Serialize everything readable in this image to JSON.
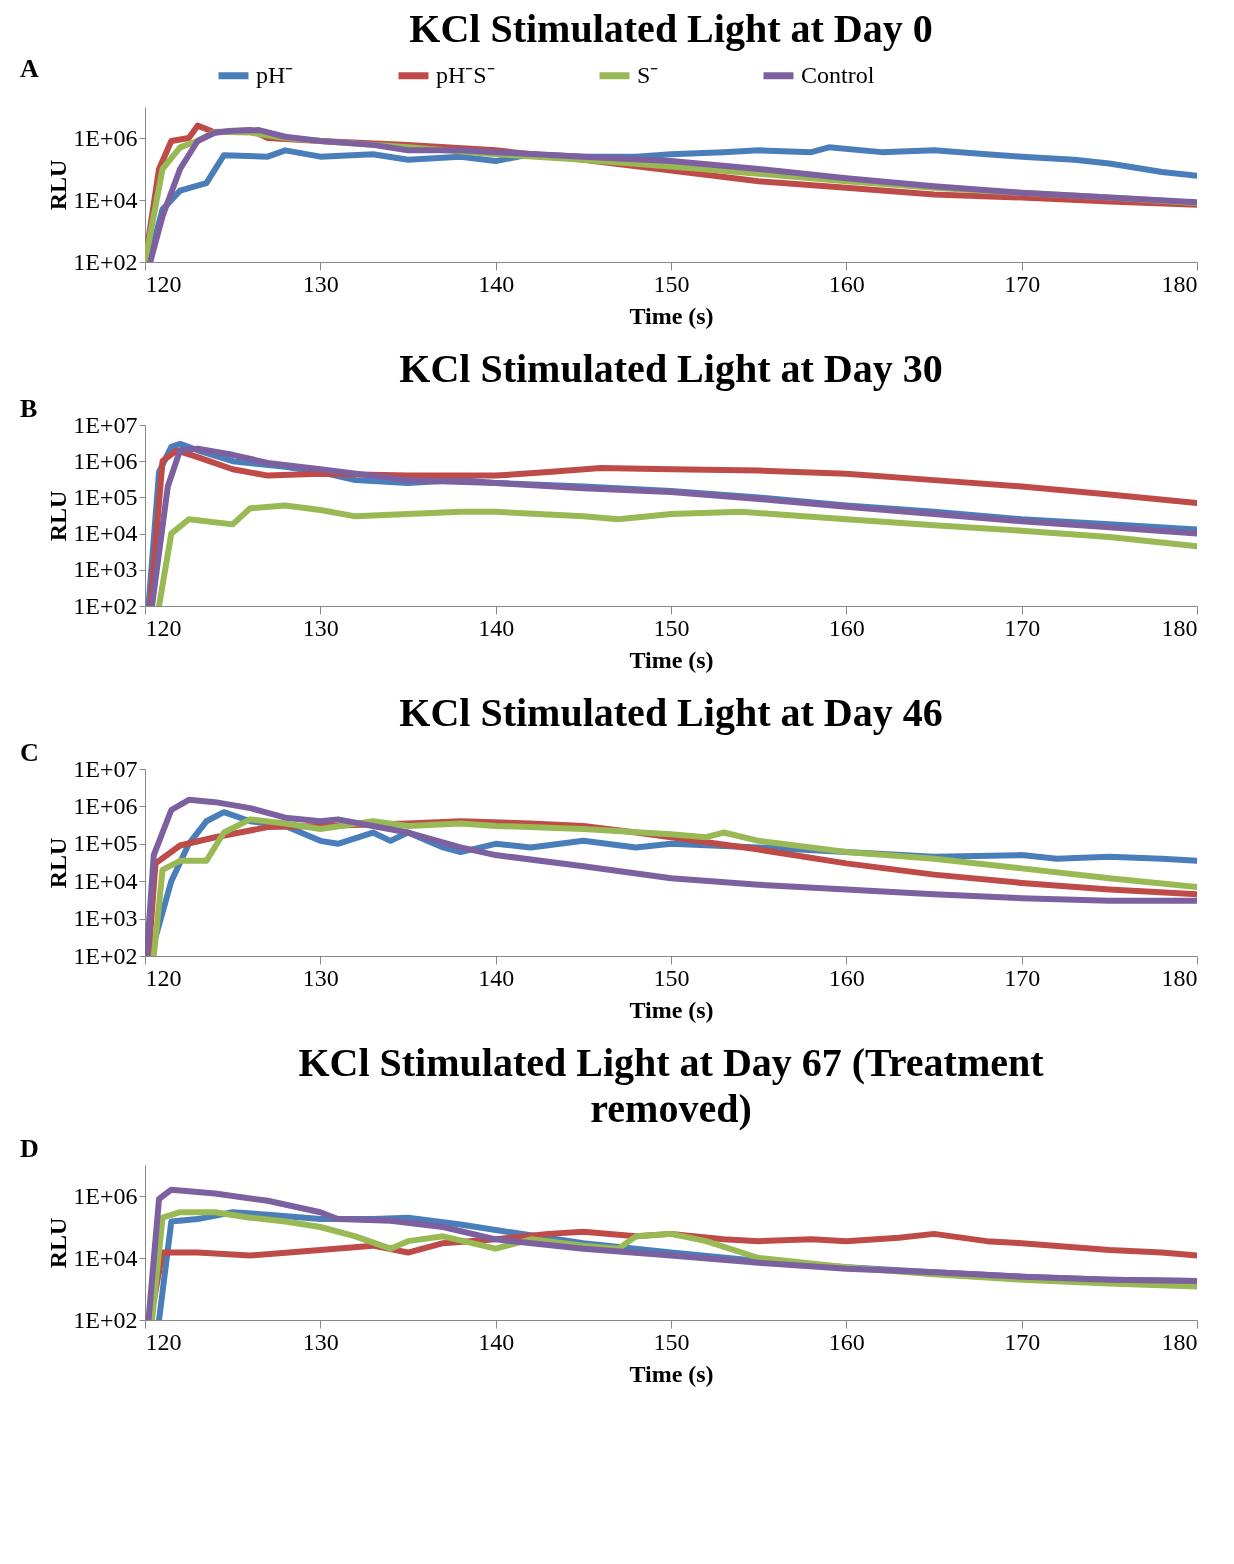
{
  "chart_data": [
    {
      "type": "line",
      "title": "KCl Stimulated Light at Day 0",
      "xlabel": "Time (s)",
      "ylabel": "RLU",
      "annotations": [
        "A"
      ],
      "log": true,
      "legend": "top",
      "line_style": "solid",
      "xlim": [
        120,
        180
      ],
      "xticks": [
        120,
        130,
        140,
        150,
        160,
        170,
        180
      ],
      "ylim": [
        100,
        10000000
      ],
      "yticks": [
        {
          "value": 100,
          "label": "1E+02"
        },
        {
          "value": 10000,
          "label": "1E+04"
        },
        {
          "value": 1000000,
          "label": "1E+06"
        }
      ],
      "series": [
        {
          "name": "pH⁻",
          "color": "#4a7ebb",
          "x": [
            120.2,
            121,
            122,
            123.5,
            124.5,
            127,
            128,
            130,
            133,
            135,
            138,
            140,
            142,
            145,
            148,
            150,
            153,
            155,
            158,
            159,
            162,
            165,
            168,
            170,
            173,
            175,
            178,
            180
          ],
          "values": [
            100,
            5000,
            20000,
            35000,
            280000,
            250000,
            400000,
            250000,
            300000,
            200000,
            250000,
            180000,
            300000,
            250000,
            250000,
            300000,
            350000,
            400000,
            350000,
            500000,
            350000,
            400000,
            300000,
            250000,
            200000,
            150000,
            80000,
            60000
          ]
        },
        {
          "name": "pH⁻S⁻",
          "color": "#be4b48",
          "x": [
            120,
            120.8,
            121.5,
            122.5,
            123,
            124,
            126,
            127,
            130,
            135,
            140,
            145,
            150,
            155,
            160,
            165,
            170,
            175,
            180
          ],
          "values": [
            100,
            100000,
            800000,
            1000000,
            2500000,
            1500000,
            1800000,
            1000000,
            800000,
            600000,
            400000,
            200000,
            90000,
            40000,
            25000,
            15000,
            12000,
            9000,
            7000
          ]
        },
        {
          "name": "S⁻",
          "color": "#98b954",
          "x": [
            120,
            121,
            122,
            123,
            124,
            126,
            128,
            130,
            135,
            140,
            145,
            150,
            155,
            160,
            165,
            170,
            175,
            180
          ],
          "values": [
            100,
            100000,
            500000,
            800000,
            1600000,
            1500000,
            1000000,
            800000,
            500000,
            300000,
            200000,
            120000,
            70000,
            40000,
            25000,
            17000,
            12000,
            8000
          ]
        },
        {
          "name": "Control",
          "color": "#7d60a0",
          "x": [
            120.3,
            121,
            122,
            123,
            124,
            125,
            126.5,
            128,
            130,
            133,
            135,
            138,
            140,
            145,
            150,
            155,
            160,
            165,
            170,
            175,
            180
          ],
          "values": [
            100,
            3000,
            100000,
            800000,
            1500000,
            1700000,
            1800000,
            1100000,
            800000,
            600000,
            400000,
            400000,
            350000,
            250000,
            180000,
            100000,
            50000,
            28000,
            17000,
            12000,
            8500
          ]
        }
      ]
    },
    {
      "type": "line",
      "title": "KCl Stimulated Light at Day 30",
      "xlabel": "Time (s)",
      "ylabel": "RLU",
      "annotations": [
        "B"
      ],
      "log": true,
      "line_style": "solid",
      "xlim": [
        120,
        180
      ],
      "xticks": [
        120,
        130,
        140,
        150,
        160,
        170,
        180
      ],
      "ylim": [
        100,
        10000000
      ],
      "yticks": [
        {
          "value": 100,
          "label": "1E+02"
        },
        {
          "value": 1000,
          "label": "1E+03"
        },
        {
          "value": 10000,
          "label": "1E+04"
        },
        {
          "value": 100000,
          "label": "1E+05"
        },
        {
          "value": 1000000,
          "label": "1E+06"
        },
        {
          "value": 10000000,
          "label": "1E+07"
        }
      ],
      "series": [
        {
          "color": "#4a7ebb",
          "x": [
            120.2,
            120.8,
            121.5,
            122,
            123,
            125,
            128,
            130,
            132,
            135,
            138,
            140,
            145,
            150,
            155,
            160,
            165,
            170,
            175,
            180
          ],
          "values": [
            100,
            500000,
            2500000,
            3000000,
            2000000,
            1000000,
            700000,
            500000,
            300000,
            250000,
            300000,
            250000,
            200000,
            150000,
            100000,
            60000,
            40000,
            25000,
            18000,
            13000
          ]
        },
        {
          "color": "#be4b48",
          "x": [
            120.3,
            121,
            121.8,
            123,
            125,
            127,
            130,
            135,
            140,
            143,
            146,
            150,
            155,
            160,
            165,
            170,
            175,
            180
          ],
          "values": [
            100,
            1000000,
            2000000,
            1300000,
            600000,
            400000,
            450000,
            400000,
            400000,
            500000,
            650000,
            600000,
            550000,
            450000,
            300000,
            200000,
            120000,
            70000
          ]
        },
        {
          "color": "#98b954",
          "x": [
            120.8,
            121.5,
            122.5,
            125,
            126,
            128,
            130,
            132,
            135,
            138,
            140,
            145,
            147,
            150,
            154,
            160,
            165,
            170,
            175,
            180
          ],
          "values": [
            100,
            10000,
            25000,
            18000,
            50000,
            60000,
            45000,
            30000,
            35000,
            40000,
            40000,
            30000,
            25000,
            35000,
            40000,
            25000,
            17000,
            12000,
            8000,
            4500
          ]
        },
        {
          "color": "#7d60a0",
          "x": [
            120.4,
            121.3,
            122,
            123,
            125,
            127,
            130,
            135,
            140,
            145,
            150,
            155,
            160,
            165,
            170,
            175,
            180
          ],
          "values": [
            100,
            200000,
            2000000,
            2200000,
            1500000,
            900000,
            600000,
            300000,
            250000,
            180000,
            140000,
            90000,
            55000,
            35000,
            22000,
            15000,
            10000
          ]
        }
      ]
    },
    {
      "type": "line",
      "title": "KCl Stimulated Light at Day 46",
      "xlabel": "Time (s)",
      "ylabel": "RLU",
      "annotations": [
        "C"
      ],
      "log": true,
      "line_style": "solid",
      "xlim": [
        120,
        180
      ],
      "xticks": [
        120,
        130,
        140,
        150,
        160,
        170,
        180
      ],
      "ylim": [
        100,
        10000000
      ],
      "yticks": [
        {
          "value": 100,
          "label": "1E+02"
        },
        {
          "value": 1000,
          "label": "1E+03"
        },
        {
          "value": 10000,
          "label": "1E+04"
        },
        {
          "value": 100000,
          "label": "1E+05"
        },
        {
          "value": 1000000,
          "label": "1E+06"
        },
        {
          "value": 10000000,
          "label": "1E+07"
        }
      ],
      "series": [
        {
          "color": "#4a7ebb",
          "x": [
            120.3,
            121.5,
            122.5,
            123.5,
            124.5,
            126,
            128,
            130,
            131,
            133,
            134,
            135,
            137,
            138,
            140,
            142,
            145,
            148,
            150,
            155,
            160,
            165,
            170,
            172,
            175,
            178,
            180
          ],
          "values": [
            100,
            10000,
            100000,
            400000,
            700000,
            400000,
            300000,
            120000,
            100000,
            200000,
            120000,
            200000,
            80000,
            60000,
            100000,
            80000,
            120000,
            80000,
            100000,
            80000,
            60000,
            45000,
            50000,
            40000,
            45000,
            40000,
            35000
          ]
        },
        {
          "color": "#be4b48",
          "x": [
            120.2,
            120.6,
            122,
            124,
            127,
            130,
            135,
            138,
            142,
            145,
            148,
            150,
            155,
            160,
            165,
            170,
            175,
            180
          ],
          "values": [
            100,
            30000,
            90000,
            150000,
            280000,
            300000,
            350000,
            400000,
            350000,
            300000,
            200000,
            150000,
            70000,
            30000,
            15000,
            9000,
            6000,
            4500
          ]
        },
        {
          "color": "#98b954",
          "x": [
            120.5,
            121,
            122,
            123.5,
            124.5,
            126,
            128,
            130,
            133,
            135,
            138,
            140,
            145,
            150,
            152,
            153,
            155,
            160,
            165,
            170,
            175,
            180
          ],
          "values": [
            100,
            20000,
            35000,
            35000,
            200000,
            450000,
            350000,
            250000,
            400000,
            300000,
            350000,
            300000,
            250000,
            180000,
            150000,
            200000,
            120000,
            60000,
            40000,
            22000,
            12000,
            7000
          ]
        },
        {
          "color": "#7d60a0",
          "x": [
            120.1,
            120.5,
            121.5,
            122.5,
            124,
            126,
            128,
            130,
            131,
            133,
            135,
            138,
            140,
            145,
            150,
            155,
            160,
            165,
            170,
            175,
            180
          ],
          "values": [
            100,
            50000,
            800000,
            1500000,
            1300000,
            900000,
            500000,
            400000,
            450000,
            300000,
            200000,
            80000,
            50000,
            25000,
            12000,
            8000,
            6000,
            4500,
            3500,
            3000,
            3000
          ]
        }
      ]
    },
    {
      "type": "line",
      "title": "KCl Stimulated Light at Day 67 (Treatment removed)",
      "xlabel": "Time (s)",
      "ylabel": "RLU",
      "annotations": [
        "D"
      ],
      "log": true,
      "line_style": "solid",
      "xlim": [
        120,
        180
      ],
      "xticks": [
        120,
        130,
        140,
        150,
        160,
        170,
        180
      ],
      "ylim": [
        100,
        10000000
      ],
      "yticks": [
        {
          "value": 100,
          "label": "1E+02"
        },
        {
          "value": 10000,
          "label": "1E+04"
        },
        {
          "value": 1000000,
          "label": "1E+06"
        }
      ],
      "series": [
        {
          "color": "#4a7ebb",
          "x": [
            120.8,
            121.5,
            123,
            125,
            127,
            130,
            133,
            135,
            138,
            140,
            145,
            150,
            155,
            160,
            165,
            170,
            175,
            180
          ],
          "values": [
            100,
            150000,
            180000,
            300000,
            250000,
            180000,
            180000,
            200000,
            120000,
            80000,
            30000,
            15000,
            8000,
            5000,
            3500,
            2500,
            2000,
            1800
          ]
        },
        {
          "color": "#be4b48",
          "x": [
            120.3,
            121,
            123,
            126,
            130,
            133,
            135,
            137,
            140,
            143,
            145,
            148,
            150,
            153,
            155,
            158,
            160,
            163,
            165,
            168,
            170,
            175,
            178,
            180
          ],
          "values": [
            100,
            15000,
            15000,
            12000,
            18000,
            25000,
            15000,
            30000,
            40000,
            60000,
            70000,
            50000,
            60000,
            40000,
            35000,
            40000,
            35000,
            45000,
            60000,
            35000,
            30000,
            18000,
            15000,
            12000
          ]
        },
        {
          "color": "#98b954",
          "x": [
            120.4,
            121,
            122,
            124,
            126,
            128,
            130,
            132,
            134,
            135,
            137,
            140,
            142,
            145,
            147,
            148,
            150,
            152,
            155,
            160,
            165,
            170,
            175,
            180
          ],
          "values": [
            100,
            200000,
            300000,
            300000,
            200000,
            150000,
            100000,
            50000,
            20000,
            35000,
            50000,
            20000,
            40000,
            25000,
            20000,
            50000,
            60000,
            35000,
            10000,
            5000,
            3000,
            2000,
            1500,
            1200
          ]
        },
        {
          "color": "#7d60a0",
          "x": [
            120.2,
            120.8,
            121.5,
            124,
            127,
            130,
            131,
            134,
            137,
            140,
            145,
            150,
            155,
            160,
            165,
            170,
            175,
            180
          ],
          "values": [
            100,
            800000,
            1600000,
            1200000,
            700000,
            300000,
            180000,
            160000,
            100000,
            40000,
            20000,
            12000,
            7000,
            4500,
            3500,
            2500,
            2000,
            1800
          ]
        }
      ]
    }
  ]
}
